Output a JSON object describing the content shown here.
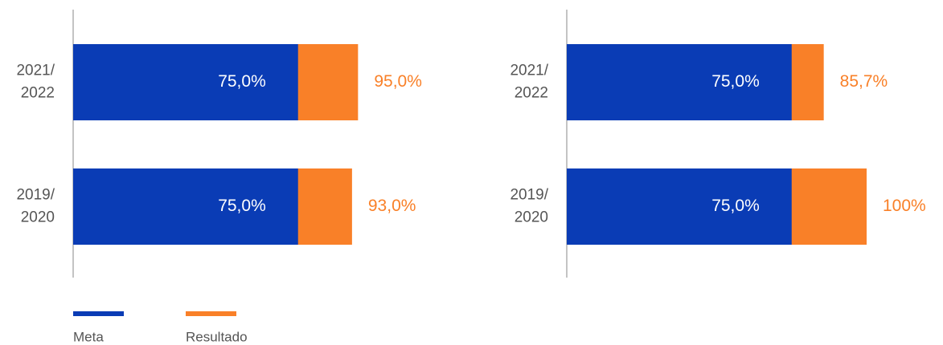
{
  "chart_data": [
    {
      "type": "bar",
      "orientation": "horizontal",
      "categories": [
        [
          "2021/",
          "2022"
        ],
        [
          "2019/",
          "2020"
        ]
      ],
      "series": [
        {
          "name": "Meta",
          "color": "#0a3cb5",
          "values": [
            75,
            75
          ],
          "value_labels": [
            "75,0%",
            "75,0%"
          ]
        },
        {
          "name": "Resultado",
          "color": "#f98028",
          "values": [
            95,
            93
          ],
          "value_labels": [
            "95,0%",
            "93,0%"
          ]
        }
      ],
      "xlim": [
        0,
        100
      ]
    },
    {
      "type": "bar",
      "orientation": "horizontal",
      "categories": [
        [
          "2021/",
          "2022"
        ],
        [
          "2019/",
          "2020"
        ]
      ],
      "series": [
        {
          "color": "#0a3cb5",
          "values": [
            75,
            75
          ],
          "value_labels": [
            "75,0%",
            "75,0%"
          ]
        },
        {
          "color": "#f98028",
          "values": [
            85.7,
            100
          ],
          "value_labels": [
            "85,7%",
            "100%"
          ]
        }
      ],
      "xlim": [
        0,
        100
      ]
    }
  ]
}
